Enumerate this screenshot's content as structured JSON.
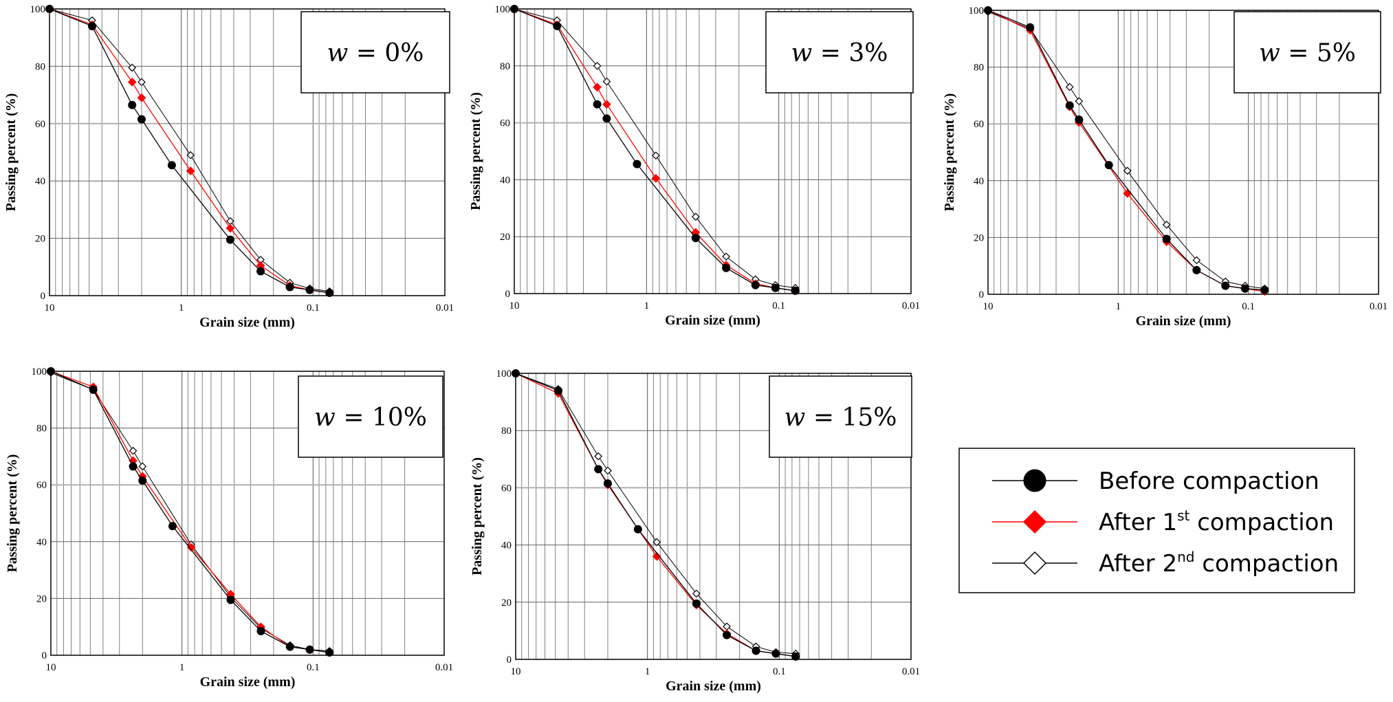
{
  "chart_data": [
    {
      "type": "line",
      "x_scale": "log",
      "x_reversed": true,
      "xlim": [
        10,
        0.01
      ],
      "ylim": [
        0,
        100
      ],
      "grid": true,
      "xlabel": "Grain size (mm)",
      "ylabel": "Passing percent (%)",
      "x_tick_labels": [
        "10",
        "1",
        "0.1",
        "0.01"
      ],
      "y_tick_labels": [
        "0",
        "20",
        "40",
        "60",
        "80",
        "100"
      ],
      "annotation": {
        "var": "w",
        "text": " = 0%"
      },
      "x": [
        10,
        4.75,
        2.36,
        2.0,
        1.18,
        0.85,
        0.425,
        0.25,
        0.15,
        0.106,
        0.075
      ],
      "series": [
        {
          "values": [
            100,
            94,
            66.5,
            61.5,
            45.5,
            null,
            19.5,
            8.5,
            3,
            2,
            1
          ]
        },
        {
          "values": [
            100,
            94.5,
            74.5,
            69,
            null,
            43.5,
            23.5,
            10.5,
            3.5,
            2,
            1
          ]
        },
        {
          "values": [
            100,
            96,
            79.5,
            74.5,
            null,
            49,
            26,
            12.5,
            4.5,
            2.5,
            1.5
          ]
        }
      ]
    },
    {
      "type": "line",
      "x_scale": "log",
      "x_reversed": true,
      "xlim": [
        10,
        0.01
      ],
      "ylim": [
        0,
        100
      ],
      "grid": true,
      "xlabel": "Grain size (mm)",
      "ylabel": "Passing percent (%)",
      "x_tick_labels": [
        "10",
        "1",
        "0.1",
        "0.01"
      ],
      "y_tick_labels": [
        "0",
        "20",
        "40",
        "60",
        "80",
        "100"
      ],
      "annotation": {
        "var": "w",
        "text": " = 3%"
      },
      "x": [
        10,
        4.75,
        2.36,
        2.0,
        1.18,
        0.85,
        0.425,
        0.25,
        0.15,
        0.106,
        0.075
      ],
      "series": [
        {
          "values": [
            100,
            94,
            66.5,
            61.5,
            45.5,
            null,
            19.5,
            9,
            3,
            2,
            1
          ]
        },
        {
          "values": [
            100,
            94.5,
            72.5,
            66.5,
            null,
            40.5,
            21.5,
            10,
            3.5,
            2,
            1
          ]
        },
        {
          "values": [
            100,
            96,
            80,
            74.5,
            null,
            48.5,
            27,
            13,
            5,
            3,
            2
          ]
        }
      ]
    },
    {
      "type": "line",
      "x_scale": "log",
      "x_reversed": true,
      "xlim": [
        10,
        0.01
      ],
      "ylim": [
        0,
        100
      ],
      "grid": true,
      "xlabel": "Grain size (mm)",
      "ylabel": "Passing percent (%)",
      "x_tick_labels": [
        "10",
        "1",
        "0.1",
        "0.01"
      ],
      "y_tick_labels": [
        "0",
        "20",
        "40",
        "60",
        "80",
        "100"
      ],
      "annotation": {
        "var": "w",
        "text": " = 5%"
      },
      "x": [
        10,
        4.75,
        2.36,
        2.0,
        1.18,
        0.85,
        0.425,
        0.25,
        0.15,
        0.106,
        0.075
      ],
      "series": [
        {
          "values": [
            100,
            94,
            66.5,
            61.5,
            45.5,
            null,
            19.5,
            8.5,
            3,
            2,
            1.5
          ]
        },
        {
          "values": [
            100,
            93,
            66,
            60.5,
            null,
            35.5,
            18.5,
            8.5,
            3,
            2,
            1
          ]
        },
        {
          "values": [
            99.5,
            93.5,
            73,
            68,
            null,
            43.5,
            24.5,
            12,
            4.5,
            3,
            2
          ]
        }
      ]
    },
    {
      "type": "line",
      "x_scale": "log",
      "x_reversed": true,
      "xlim": [
        10,
        0.01
      ],
      "ylim": [
        0,
        100
      ],
      "grid": true,
      "xlabel": "Grain size (mm)",
      "ylabel": "Passing percent (%)",
      "x_tick_labels": [
        "10",
        "1",
        "0.1",
        "0.01"
      ],
      "y_tick_labels": [
        "0",
        "20",
        "40",
        "60",
        "80",
        "100"
      ],
      "annotation": {
        "var": "w",
        "text": " = 10%"
      },
      "x": [
        10,
        4.75,
        2.36,
        2.0,
        1.18,
        0.85,
        0.425,
        0.25,
        0.15,
        0.106,
        0.075
      ],
      "series": [
        {
          "values": [
            100,
            93.5,
            66.5,
            61.5,
            45.5,
            null,
            19.5,
            8.5,
            3,
            2,
            1
          ]
        },
        {
          "values": [
            100,
            94.5,
            68.5,
            63,
            null,
            38,
            21.5,
            10,
            3,
            2,
            1
          ]
        },
        {
          "values": [
            99.5,
            93.5,
            72,
            66.5,
            null,
            39,
            20.5,
            9.5,
            3.5,
            2,
            1.5
          ]
        }
      ]
    },
    {
      "type": "line",
      "x_scale": "log",
      "x_reversed": true,
      "xlim": [
        10,
        0.01
      ],
      "ylim": [
        0,
        100
      ],
      "grid": true,
      "xlabel": "Grain size (mm)",
      "ylabel": "Passing percent (%)",
      "x_tick_labels": [
        "10",
        "1",
        "0.1",
        "0.01"
      ],
      "y_tick_labels": [
        "0",
        "20",
        "40",
        "60",
        "80",
        "100"
      ],
      "annotation": {
        "var": "w",
        "text": " = 15%"
      },
      "x": [
        10,
        4.75,
        2.36,
        2.0,
        1.18,
        0.85,
        0.425,
        0.25,
        0.15,
        0.106,
        0.075
      ],
      "series": [
        {
          "values": [
            100,
            94,
            66.5,
            61.5,
            45.5,
            null,
            19.5,
            8.5,
            3,
            2,
            1
          ]
        },
        {
          "values": [
            100,
            93,
            66.5,
            61,
            null,
            36,
            19,
            9,
            3,
            2,
            1
          ]
        },
        {
          "values": [
            100,
            94.5,
            71,
            66,
            null,
            41,
            23,
            11.5,
            4.5,
            2.5,
            2
          ]
        }
      ]
    }
  ],
  "legend": {
    "items": [
      {
        "text": "Before compaction",
        "sup": "",
        "after": "",
        "color": "#000000",
        "marker": "filled-circle"
      },
      {
        "text": "After 1",
        "sup": "st",
        "after": " compaction",
        "color": "#ff0000",
        "marker": "filled-diamond"
      },
      {
        "text": "After 2",
        "sup": "nd",
        "after": " compaction",
        "color": "#000000",
        "marker": "open-diamond"
      }
    ]
  }
}
